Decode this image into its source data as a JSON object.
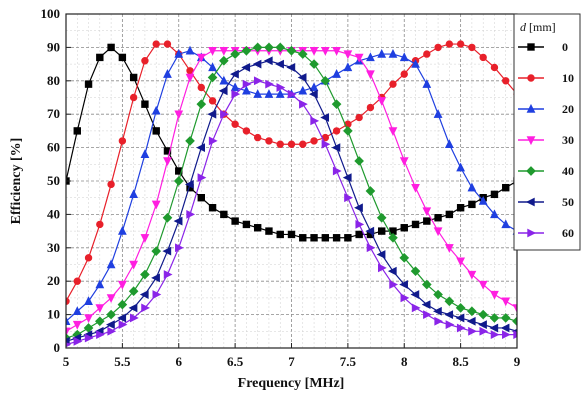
{
  "chart_data": {
    "type": "line",
    "xlabel": "Frequency [MHz]",
    "ylabel": "Efficiency [%]",
    "xlim": [
      5,
      9
    ],
    "ylim": [
      0,
      100
    ],
    "xticks": [
      "5",
      "5.5",
      "6",
      "6.5",
      "7",
      "7.5",
      "8",
      "8.5",
      "9"
    ],
    "yticks": [
      "0",
      "10",
      "20",
      "30",
      "40",
      "50",
      "60",
      "70",
      "80",
      "90",
      "100"
    ],
    "grid": true,
    "legend": {
      "title_var": "d",
      "title_unit": "[mm]",
      "position": "right"
    },
    "x": [
      5.0,
      5.1,
      5.2,
      5.3,
      5.4,
      5.5,
      5.6,
      5.7,
      5.8,
      5.9,
      6.0,
      6.1,
      6.2,
      6.3,
      6.4,
      6.5,
      6.6,
      6.7,
      6.8,
      6.9,
      7.0,
      7.1,
      7.2,
      7.3,
      7.4,
      7.5,
      7.6,
      7.7,
      7.8,
      7.9,
      8.0,
      8.1,
      8.2,
      8.3,
      8.4,
      8.5,
      8.6,
      8.7,
      8.8,
      8.9,
      9.0
    ],
    "series": [
      {
        "name": "0",
        "color": "#000000",
        "marker": "square",
        "values": [
          50,
          65,
          79,
          87,
          90,
          87,
          81,
          73,
          65,
          59,
          53,
          48,
          45,
          42,
          40,
          38,
          37,
          36,
          35,
          34,
          34,
          33,
          33,
          33,
          33,
          33,
          34,
          34,
          35,
          35,
          36,
          37,
          38,
          39,
          40,
          42,
          43,
          45,
          46,
          48,
          50
        ]
      },
      {
        "name": "10",
        "color": "#e8202a",
        "marker": "circle",
        "values": [
          14,
          20,
          27,
          37,
          49,
          62,
          75,
          86,
          91,
          91,
          88,
          83,
          78,
          74,
          70,
          67,
          65,
          63,
          62,
          61,
          61,
          61,
          62,
          63,
          65,
          67,
          69,
          72,
          75,
          79,
          82,
          86,
          88,
          90,
          91,
          91,
          90,
          87,
          84,
          80,
          76
        ]
      },
      {
        "name": "20",
        "color": "#1f3fe0",
        "marker": "triangle-up",
        "values": [
          8,
          11,
          14,
          19,
          25,
          35,
          46,
          58,
          71,
          82,
          88,
          89,
          87,
          84,
          80,
          78,
          77,
          76,
          76,
          76,
          76,
          77,
          78,
          80,
          82,
          84,
          86,
          87,
          88,
          88,
          87,
          85,
          79,
          70,
          61,
          54,
          48,
          44,
          40,
          37,
          35
        ]
      },
      {
        "name": "30",
        "color": "#ff1ee0",
        "marker": "triangle-down",
        "values": [
          5,
          7,
          9,
          12,
          15,
          19,
          25,
          33,
          43,
          56,
          70,
          81,
          87,
          89,
          89,
          89,
          89,
          89,
          89,
          89,
          89,
          89,
          89,
          89,
          89,
          88,
          87,
          82,
          74,
          65,
          56,
          48,
          41,
          35,
          30,
          26,
          22,
          19,
          16,
          14,
          12
        ]
      },
      {
        "name": "40",
        "color": "#1f9a2e",
        "marker": "diamond",
        "values": [
          3,
          4,
          6,
          8,
          10,
          13,
          17,
          22,
          29,
          39,
          50,
          62,
          73,
          81,
          86,
          88,
          89,
          90,
          90,
          90,
          89,
          88,
          85,
          80,
          73,
          65,
          56,
          47,
          39,
          33,
          27,
          23,
          19,
          16,
          14,
          12,
          11,
          10,
          9,
          9,
          8
        ]
      },
      {
        "name": "50",
        "color": "#101a8c",
        "marker": "triangle-left",
        "values": [
          2,
          3,
          4,
          5,
          7,
          9,
          12,
          16,
          21,
          29,
          38,
          49,
          60,
          70,
          77,
          82,
          84,
          85,
          86,
          85,
          84,
          81,
          76,
          69,
          60,
          51,
          42,
          35,
          28,
          23,
          19,
          16,
          13,
          11,
          10,
          9,
          8,
          7,
          6,
          6,
          5
        ]
      },
      {
        "name": "60",
        "color": "#8a24e8",
        "marker": "triangle-right",
        "values": [
          1,
          2,
          3,
          4,
          5,
          7,
          9,
          12,
          16,
          22,
          30,
          40,
          51,
          62,
          70,
          76,
          79,
          80,
          79,
          78,
          76,
          73,
          68,
          61,
          53,
          45,
          37,
          30,
          24,
          19,
          15,
          12,
          10,
          8,
          7,
          6,
          5,
          5,
          4,
          4,
          4
        ]
      }
    ]
  }
}
